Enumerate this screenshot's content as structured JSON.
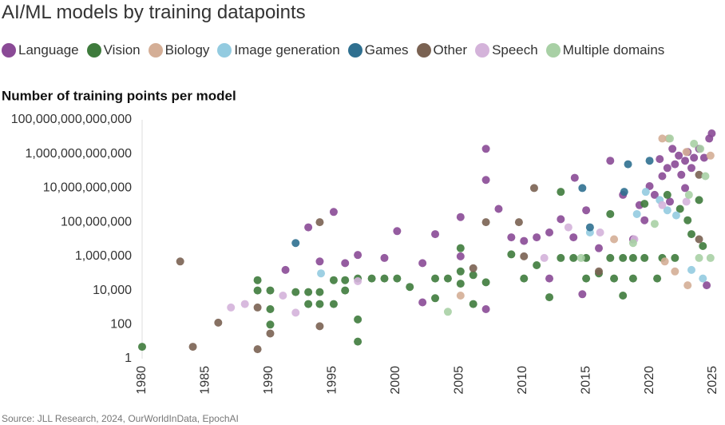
{
  "chart_data": {
    "type": "scatter",
    "title": "AI/ML models by training datapoints",
    "y_label": "Number of training points per model",
    "source": "Source: JLL Research, 2024, OurWorldInData, EpochAI",
    "y_log": true,
    "grid": false,
    "legend": "top",
    "xlim": [
      1980,
      2025
    ],
    "xticks": [
      1980,
      1985,
      1990,
      1995,
      2000,
      2005,
      2010,
      2015,
      2020,
      2025
    ],
    "ylim": [
      1,
      100000000000000
    ],
    "yticks": [
      1,
      100,
      {
        "value": 10000,
        "label": "10,000"
      },
      {
        "value": 1000000,
        "label": "1,000,000"
      },
      {
        "value": 100000000,
        "label": "100,000,000"
      },
      {
        "value": 10000000000,
        "label": "10,000,000,000"
      },
      {
        "value": 1000000000000,
        "label": "1,000,000,000,000"
      },
      {
        "value": 100000000000000,
        "label": "100,000,000,000,000"
      }
    ],
    "series": [
      {
        "name": "Language",
        "color": "#8a4a96",
        "x": [
          1991.3,
          1993.1,
          1994,
          1995.1,
          1996,
          1997,
          1999.1,
          2000.1,
          2002.1,
          2002.1,
          2003.1,
          2005.1,
          2005.1,
          2007.1,
          2007.1,
          2007.1,
          2008.1,
          2009.1,
          2010.1,
          2011.1,
          2012.1,
          2012.1,
          2013,
          2014,
          2014.1,
          2015,
          2014.7,
          2016,
          2016.9,
          2017.9,
          2018.7,
          2019.6,
          2020,
          2020.4,
          2020.8,
          2021,
          2021.4,
          2021.8,
          2022,
          2022.3,
          2022.5,
          2022.8,
          2023,
          2023.3,
          2023.5,
          2023.9,
          2024.3,
          2024.7,
          2024.9,
          2024.5,
          2021.6,
          2019.2,
          2022.8
        ],
        "values": [
          160000.0,
          50000000.0,
          500000.0,
          400000000.0,
          400000.0,
          1200000.0,
          800000.0,
          30000000.0,
          400000.0,
          2000.0,
          20000000.0,
          200000000.0,
          1000000.0,
          2000000000000.0,
          30000000000.0,
          800.0,
          600000000.0,
          13000000.0,
          8000000.0,
          13000000.0,
          25000000.0,
          50000.0,
          150000000.0,
          13000000.0,
          40000000000.0,
          500000000.0,
          6000.0,
          3000000.0,
          400000000000.0,
          4000000000.0,
          10000000.0,
          130000000.0,
          13000000000.0,
          4000000000.0,
          500000000000.0,
          50000000000.0,
          150000000000.0,
          2000000000000.0,
          250000000000.0,
          800000000000.0,
          60000000000.0,
          400000000000.0,
          1300000000000.0,
          150000000000.0,
          600000000000.0,
          2000000000000.0,
          600000000000.0,
          8000000000000.0,
          16000000000000.0,
          20000.0,
          1600000000.0,
          1000000000.0,
          10000000000.0
        ]
      },
      {
        "name": "Vision",
        "color": "#3e7b3c",
        "x": [
          1980,
          1989.1,
          1989.1,
          1990.1,
          1990.1,
          1990.1,
          1992.1,
          1993.1,
          1993.1,
          1994,
          1994,
          1995.1,
          1995.1,
          1996,
          1996,
          1997,
          1997,
          1997,
          1998.1,
          1999.1,
          2000.1,
          2001.1,
          2003.1,
          2003.1,
          2004.1,
          2005.1,
          2005.1,
          2005.1,
          2006.1,
          2006.1,
          2007.1,
          2009.1,
          2010.1,
          2011.1,
          2012.1,
          2013,
          2013,
          2014,
          2015,
          2015,
          2016,
          2016.9,
          2016.9,
          2017.9,
          2017.9,
          2018.7,
          2018.7,
          2019.6,
          2019.6,
          2021,
          2021.4,
          2022,
          2022.4,
          2023,
          2023.3,
          2023.9,
          2024.2,
          2020.6,
          2017.2
        ],
        "values": [
          5,
          40000.0,
          10000.0,
          800.0,
          100,
          10000.0,
          8000.0,
          8000.0,
          1600.0,
          8000.0,
          1600.0,
          1600.0,
          40000.0,
          40000.0,
          10000.0,
          50000.0,
          200,
          10,
          50000.0,
          50000.0,
          50000.0,
          16000.0,
          50000.0,
          3500.0,
          50000.0,
          3000000.0,
          130000.0,
          25000.0,
          80000.0,
          1600.0,
          30000.0,
          1300000.0,
          50000.0,
          300000.0,
          4000.0,
          800000.0,
          6000000000.0,
          800000.0,
          800000.0,
          50000.0,
          100000.0,
          800000.0,
          300000000.0,
          800000.0,
          5000.0,
          800000.0,
          50000.0,
          800000.0,
          1200000000.0,
          800000.0,
          4000000000.0,
          800000.0,
          600000000.0,
          130000000.0,
          20000000.0,
          2000000000.0,
          4000000.0,
          50000.0,
          50000.0
        ]
      },
      {
        "name": "Biology",
        "color": "#d4ae96",
        "x": [
          2021,
          2021.5,
          2022.9,
          2024.8,
          2021.2,
          2023,
          2022,
          2005.1,
          2017.2
        ],
        "values": [
          8000000000000.0,
          8000000000000.0,
          1300000000000.0,
          800000000000.0,
          500000.0,
          20000.0,
          130000.0,
          5000.0,
          10000000.0
        ]
      },
      {
        "name": "Image generation",
        "color": "#93cbe0",
        "x": [
          2024.2,
          2023.3,
          2022.1,
          2021.4,
          2020.8,
          2019.7,
          2019,
          2015.3,
          1994.1
        ],
        "values": [
          50000.0,
          160000.0,
          250000000.0,
          500000000.0,
          2000000000.0,
          6000000000.0,
          300000000.0,
          25000000.0,
          100000.0
        ]
      },
      {
        "name": "Games",
        "color": "#2f7090",
        "x": [
          1992.1,
          2014.7,
          2018.3,
          2018,
          2020,
          2015.3
        ],
        "values": [
          6000000.0,
          10000000000.0,
          250000000000.0,
          6000000000.0,
          400000000000.0,
          50000000.0
        ]
      },
      {
        "name": "Other",
        "color": "#7a6252",
        "x": [
          1983,
          1984,
          1986,
          1989.1,
          1989.1,
          1990.1,
          1994,
          1994,
          2006.1,
          2007.1,
          2009.7,
          2010.9,
          2010.1,
          2016,
          2023.9,
          2023.9
        ],
        "values": [
          500000.0,
          5,
          130.0,
          3.6,
          1000.0,
          30,
          80,
          100000000.0,
          200000.0,
          100000000.0,
          100000000.0,
          10000000000.0,
          1000000.0,
          130000.0,
          10000000.0,
          60000000000.0
        ]
      },
      {
        "name": "Speech",
        "color": "#d4b3da",
        "x": [
          1987,
          1988.1,
          1991.1,
          1992.1,
          1997,
          2011.7,
          2013.6,
          2016.1,
          2018.8,
          2021,
          2022.9
        ],
        "values": [
          1000.0,
          1600.0,
          5000.0,
          500.0,
          35000.0,
          800000.0,
          50000000.0,
          25000000.0,
          10000000.0,
          1000000000.0,
          1600000000.0
        ]
      },
      {
        "name": "Multiple domains",
        "color": "#a8d0a5",
        "x": [
          2004.1,
          2021.6,
          2023.5,
          2024,
          2024.4,
          2023.9,
          2024.8,
          2023.1,
          2020.4,
          2018.7,
          2014.6
        ],
        "values": [
          560.0,
          8000000000000.0,
          4000000000000.0,
          2000000000000.0,
          50000000000.0,
          800000.0,
          800000.0,
          4000000000.0,
          80000000.0,
          6000000.0,
          800000.0
        ]
      }
    ]
  }
}
